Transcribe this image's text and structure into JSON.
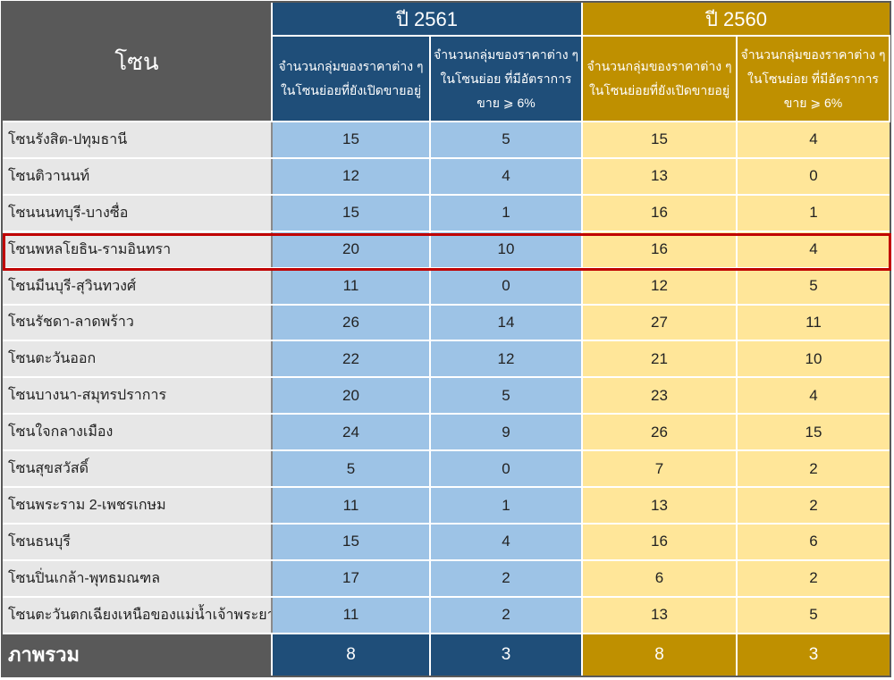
{
  "header": {
    "zone_label": "โซน",
    "year_2561": "ปี 2561",
    "year_2560": "ปี 2560",
    "col_open": "จำนวนกลุ่มของราคาต่าง ๆในโซนย่อยที่ยังเปิดขายอยู่",
    "col_rate": "จำนวนกลุ่มของราคาต่าง ๆในโซนย่อย ที่มีอัตราการขาย ⩾ 6%"
  },
  "rows": [
    {
      "zone": "โซนรังสิต-ปทุมธานี",
      "v": [
        "15",
        "5",
        "15",
        "4"
      ]
    },
    {
      "zone": "โซนติวานนท์",
      "v": [
        "12",
        "4",
        "13",
        "0"
      ]
    },
    {
      "zone": "โซนนนทบุรี-บางซื่อ",
      "v": [
        "15",
        "1",
        "16",
        "1"
      ]
    },
    {
      "zone": "โซนพหลโยธิน-รามอินทรา",
      "v": [
        "20",
        "10",
        "16",
        "4"
      ]
    },
    {
      "zone": "โซนมีนบุรี-สุวินทวงศ์",
      "v": [
        "11",
        "0",
        "12",
        "5"
      ]
    },
    {
      "zone": "โซนรัชดา-ลาดพร้าว",
      "v": [
        "26",
        "14",
        "27",
        "11"
      ]
    },
    {
      "zone": "โซนตะวันออก",
      "v": [
        "22",
        "12",
        "21",
        "10"
      ]
    },
    {
      "zone": "โซนบางนา-สมุทรปราการ",
      "v": [
        "20",
        "5",
        "23",
        "4"
      ]
    },
    {
      "zone": "โซนใจกลางเมือง",
      "v": [
        "24",
        "9",
        "26",
        "15"
      ]
    },
    {
      "zone": "โซนสุขสวัสดิ์",
      "v": [
        "5",
        "0",
        "7",
        "2"
      ]
    },
    {
      "zone": "โซนพระราม 2-เพชรเกษม",
      "v": [
        "11",
        "1",
        "13",
        "2"
      ]
    },
    {
      "zone": "โซนธนบุรี",
      "v": [
        "15",
        "4",
        "16",
        "6"
      ]
    },
    {
      "zone": "โซนปิ่นเกล้า-พุทธมณฑล",
      "v": [
        "17",
        "2",
        "6",
        "2"
      ]
    },
    {
      "zone": "โซนตะวันตกเฉียงเหนือของแม่น้ำเจ้าพระยา",
      "v": [
        "11",
        "2",
        "13",
        "5"
      ]
    }
  ],
  "total": {
    "label": "ภาพรวม",
    "v": [
      "8",
      "3",
      "8",
      "3"
    ]
  },
  "colors": {
    "blue": "#1f4e79",
    "light_blue": "#9dc3e6",
    "gold": "#bf9000",
    "light_yellow": "#ffe699",
    "highlight": "#c00000"
  }
}
